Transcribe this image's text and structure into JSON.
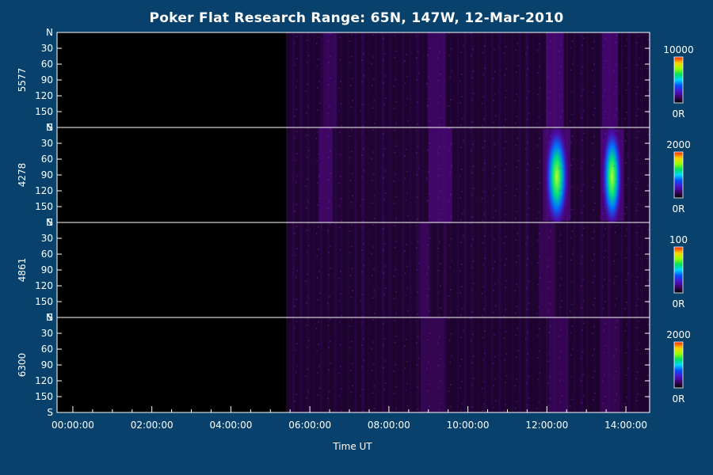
{
  "chart_data": {
    "type": "heatmap",
    "title": "Poker Flat Research Range: 65N, 147W, 12-Mar-2010",
    "xlabel": "Time UT",
    "x_ticks": [
      "00:00:00",
      "02:00:00",
      "04:00:00",
      "06:00:00",
      "08:00:00",
      "10:00:00",
      "12:00:00",
      "14:00:00"
    ],
    "x_tick_hours": [
      0,
      2,
      4,
      6,
      8,
      10,
      12,
      14
    ],
    "xlim_hours": [
      -0.4,
      14.6
    ],
    "colormap": "rainbow",
    "data_start_hour": 5.4,
    "panels": [
      {
        "name": "5577",
        "y_ticks": [
          "N",
          "30",
          "60",
          "90",
          "120",
          "150",
          "S"
        ],
        "y_tick_values": [
          0,
          30,
          60,
          90,
          120,
          150,
          180
        ],
        "colorbar": {
          "max_label": "10000",
          "min_label": "0R",
          "max": 10000,
          "min": 0
        },
        "background_intensity": 0.14,
        "arcs": [
          {
            "center_hour": 6.5,
            "width_hours": 0.35,
            "intensity": 0.22
          },
          {
            "center_hour": 9.2,
            "width_hours": 0.45,
            "intensity": 0.25
          },
          {
            "center_hour": 12.2,
            "width_hours": 0.45,
            "intensity": 0.35
          },
          {
            "center_hour": 13.6,
            "width_hours": 0.4,
            "intensity": 0.33
          }
        ]
      },
      {
        "name": "4278",
        "y_ticks": [
          "N",
          "30",
          "60",
          "90",
          "120",
          "150",
          "S"
        ],
        "y_tick_values": [
          0,
          30,
          60,
          90,
          120,
          150,
          180
        ],
        "colorbar": {
          "max_label": "2000",
          "min_label": "0R",
          "max": 2000,
          "min": 0
        },
        "background_intensity": 0.16,
        "arcs": [
          {
            "center_hour": 6.4,
            "width_hours": 0.35,
            "intensity": 0.3
          },
          {
            "center_hour": 9.3,
            "width_hours": 0.6,
            "intensity": 0.33
          },
          {
            "center_hour": 12.25,
            "width_hours": 0.35,
            "intensity": 0.72
          },
          {
            "center_hour": 13.65,
            "width_hours": 0.3,
            "intensity": 0.74
          }
        ]
      },
      {
        "name": "4861",
        "y_ticks": [
          "N",
          "30",
          "60",
          "90",
          "120",
          "150",
          "S"
        ],
        "y_tick_values": [
          0,
          30,
          60,
          90,
          120,
          150,
          180
        ],
        "colorbar": {
          "max_label": "100",
          "min_label": "0R",
          "max": 100,
          "min": 0
        },
        "background_intensity": 0.15,
        "arcs": [
          {
            "center_hour": 8.9,
            "width_hours": 0.25,
            "intensity": 0.22
          },
          {
            "center_hour": 12.0,
            "width_hours": 0.4,
            "intensity": 0.18
          }
        ]
      },
      {
        "name": "6300",
        "y_ticks": [
          "N",
          "30",
          "60",
          "90",
          "120",
          "150",
          "S"
        ],
        "y_tick_values": [
          0,
          30,
          60,
          90,
          120,
          150,
          180
        ],
        "colorbar": {
          "max_label": "2000",
          "min_label": "0R",
          "max": 2000,
          "min": 0
        },
        "background_intensity": 0.12,
        "arcs": [
          {
            "center_hour": 9.1,
            "width_hours": 0.6,
            "intensity": 0.18
          },
          {
            "center_hour": 12.3,
            "width_hours": 0.5,
            "intensity": 0.2
          },
          {
            "center_hour": 13.6,
            "width_hours": 0.5,
            "intensity": 0.18
          }
        ]
      }
    ]
  }
}
